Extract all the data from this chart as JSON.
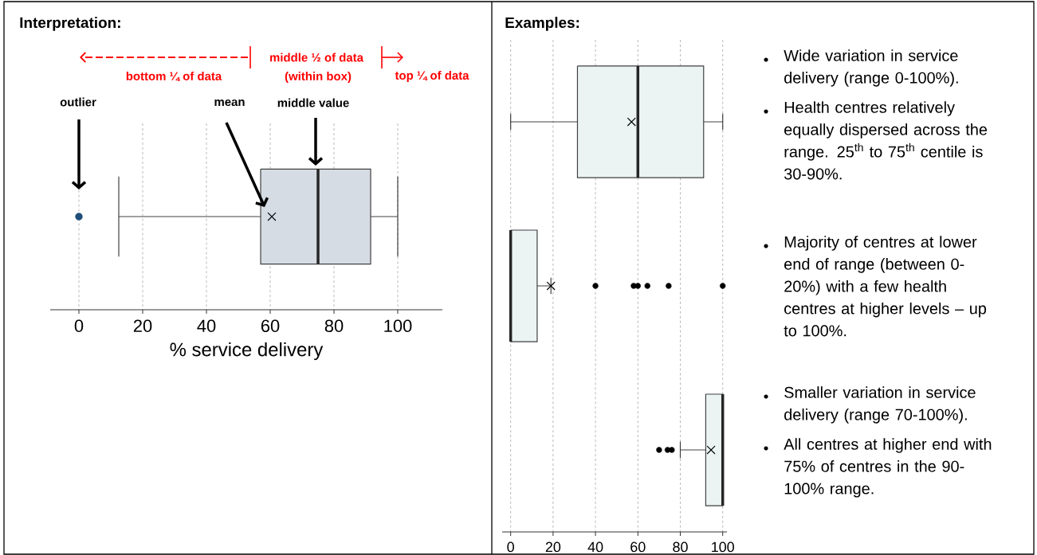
{
  "chart_data": [
    {
      "type": "box",
      "orientation": "horizontal",
      "title": "Interpretation:",
      "xlabel": "% service delivery",
      "categories": [
        null
      ],
      "color": "#d6dce4",
      "boxes": [
        {
          "low": 12.5,
          "q1": 57,
          "median": 75,
          "q3": 91.5,
          "high": 100,
          "mean": 60.5,
          "outliers": [
            0
          ]
        }
      ],
      "xlim": [
        -9,
        114
      ],
      "xticks": [
        0,
        20,
        40,
        60,
        80,
        100
      ],
      "grid": "x",
      "annotations": [
        "bottom ¼ of data",
        "middle ½ of data",
        "(within box)",
        "top ¼ of data",
        "outlier",
        "mean",
        "middle value"
      ]
    },
    {
      "type": "box",
      "orientation": "horizontal",
      "title": "Examples:",
      "categories": [
        null,
        null,
        null
      ],
      "color": "#ebf3f3",
      "boxes": [
        {
          "low": 0,
          "q1": 31.5,
          "median": 60,
          "q3": 91,
          "high": 100,
          "mean": 57
        },
        {
          "low": 0,
          "q1": 0,
          "median": 0,
          "q3": 12.5,
          "high": 19,
          "mean": 19,
          "outliers": [
            40,
            58,
            60,
            64.5,
            74.5,
            100
          ]
        },
        {
          "low": 80,
          "q1": 92,
          "median": 100,
          "q3": 100,
          "high": 100,
          "mean": 94.5,
          "outliers": [
            70,
            74,
            76
          ]
        }
      ],
      "xlim": [
        -4,
        102
      ],
      "xticks": [
        0,
        20,
        40,
        60,
        80,
        100
      ],
      "grid": "x",
      "annotations": [
        "Wide variation in service delivery (range 0-100%).",
        "Health centres relatively equally dispersed across the range. 25$^{th}$ to 75$^{th}$ centile is 30-90%.",
        "Majority of centres at lower end of range (between 0-20%) with a few health centres at higher levels – up to 100%.",
        "Smaller variation in service delivery (range 70-100%).",
        "All centres at higher end with 75% of centres in the 90-100% range."
      ]
    }
  ]
}
